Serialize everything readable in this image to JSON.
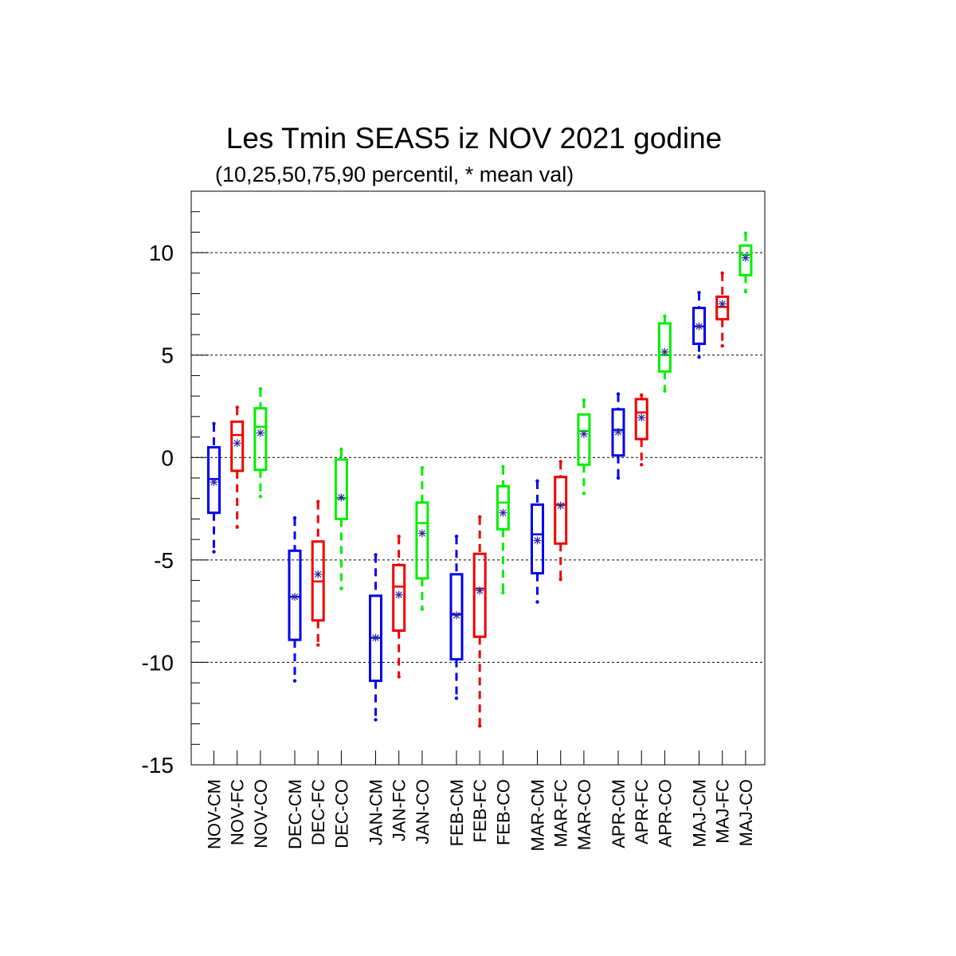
{
  "chart_data": {
    "type": "boxplot",
    "title": "Les Tmin SEAS5 iz NOV 2021 godine",
    "subtitle": "(10,25,50,75,90 percentil, * mean val)",
    "xlabel": "",
    "ylabel": "",
    "ylim": [
      -15,
      13
    ],
    "yticks": [
      -15,
      -10,
      -5,
      0,
      5,
      10
    ],
    "yminor_step": 1,
    "grid": "dashed horizontal at major ticks",
    "legend": "none",
    "colors": {
      "CM": "#0000ee",
      "FC": "#ee0000",
      "CO": "#00ee00",
      "mean": "#2b2b9f"
    },
    "categories": [
      "NOV-CM",
      "NOV-FC",
      "NOV-CO",
      "DEC-CM",
      "DEC-FC",
      "DEC-CO",
      "JAN-CM",
      "JAN-FC",
      "JAN-CO",
      "FEB-CM",
      "FEB-FC",
      "FEB-CO",
      "MAR-CM",
      "MAR-FC",
      "MAR-CO",
      "APR-CM",
      "APR-FC",
      "APR-CO",
      "MAJ-CM",
      "MAJ-FC",
      "MAJ-CO"
    ],
    "boxes": [
      {
        "label": "NOV-CM",
        "group": "CM",
        "p10": -4.6,
        "p25": -2.7,
        "p50": -1.05,
        "p75": 0.5,
        "p90": 1.65,
        "mean": -1.2
      },
      {
        "label": "NOV-FC",
        "group": "FC",
        "p10": -3.4,
        "p25": -0.65,
        "p50": 1.1,
        "p75": 1.75,
        "p90": 2.45,
        "mean": 0.7
      },
      {
        "label": "NOV-CO",
        "group": "CO",
        "p10": -1.9,
        "p25": -0.6,
        "p50": 1.5,
        "p75": 2.4,
        "p90": 3.35,
        "mean": 1.2
      },
      {
        "label": "DEC-CM",
        "group": "CM",
        "p10": -10.9,
        "p25": -8.9,
        "p50": -6.8,
        "p75": -4.55,
        "p90": -2.95,
        "mean": -6.8
      },
      {
        "label": "DEC-FC",
        "group": "FC",
        "p10": -9.15,
        "p25": -7.95,
        "p50": -6.05,
        "p75": -4.1,
        "p90": -2.15,
        "mean": -5.7
      },
      {
        "label": "DEC-CO",
        "group": "CO",
        "p10": -6.4,
        "p25": -3.0,
        "p50": -2.0,
        "p75": -0.1,
        "p90": 0.4,
        "mean": -1.95
      },
      {
        "label": "JAN-CM",
        "group": "CM",
        "p10": -12.8,
        "p25": -10.9,
        "p50": -8.8,
        "p75": -6.75,
        "p90": -4.75,
        "mean": -8.8
      },
      {
        "label": "JAN-FC",
        "group": "FC",
        "p10": -10.7,
        "p25": -8.45,
        "p50": -6.3,
        "p75": -5.25,
        "p90": -3.85,
        "mean": -6.7
      },
      {
        "label": "JAN-CO",
        "group": "CO",
        "p10": -7.4,
        "p25": -5.9,
        "p50": -3.2,
        "p75": -2.2,
        "p90": -0.5,
        "mean": -3.7
      },
      {
        "label": "FEB-CM",
        "group": "CM",
        "p10": -11.75,
        "p25": -9.85,
        "p50": -7.65,
        "p75": -5.7,
        "p90": -3.85,
        "mean": -7.7
      },
      {
        "label": "FEB-FC",
        "group": "FC",
        "p10": -13.1,
        "p25": -8.75,
        "p50": -6.4,
        "p75": -4.7,
        "p90": -2.9,
        "mean": -6.5
      },
      {
        "label": "FEB-CO",
        "group": "CO",
        "p10": -6.6,
        "p25": -3.5,
        "p50": -2.2,
        "p75": -1.4,
        "p90": -0.45,
        "mean": -2.7
      },
      {
        "label": "MAR-CM",
        "group": "CM",
        "p10": -7.05,
        "p25": -5.65,
        "p50": -3.75,
        "p75": -2.3,
        "p90": -1.15,
        "mean": -4.05
      },
      {
        "label": "MAR-FC",
        "group": "FC",
        "p10": -5.95,
        "p25": -4.2,
        "p50": -2.3,
        "p75": -0.95,
        "p90": -0.2,
        "mean": -2.35
      },
      {
        "label": "MAR-CO",
        "group": "CO",
        "p10": -1.75,
        "p25": -0.35,
        "p50": 1.3,
        "p75": 2.1,
        "p90": 2.8,
        "mean": 1.15
      },
      {
        "label": "APR-CM",
        "group": "CM",
        "p10": -1.0,
        "p25": 0.1,
        "p50": 1.35,
        "p75": 2.35,
        "p90": 3.1,
        "mean": 1.25
      },
      {
        "label": "APR-FC",
        "group": "FC",
        "p10": -0.35,
        "p25": 0.9,
        "p50": 2.2,
        "p75": 2.85,
        "p90": 3.05,
        "mean": 1.95
      },
      {
        "label": "APR-CO",
        "group": "CO",
        "p10": 3.25,
        "p25": 4.2,
        "p50": 5.0,
        "p75": 6.55,
        "p90": 6.9,
        "mean": 5.15
      },
      {
        "label": "MAJ-CM",
        "group": "CM",
        "p10": 4.9,
        "p25": 5.55,
        "p50": 6.4,
        "p75": 7.3,
        "p90": 8.05,
        "mean": 6.4
      },
      {
        "label": "MAJ-FC",
        "group": "FC",
        "p10": 5.45,
        "p25": 6.75,
        "p50": 7.35,
        "p75": 7.85,
        "p90": 9.0,
        "mean": 7.5
      },
      {
        "label": "MAJ-CO",
        "group": "CO",
        "p10": 8.1,
        "p25": 8.9,
        "p50": 9.9,
        "p75": 10.35,
        "p90": 10.95,
        "mean": 9.75
      }
    ]
  }
}
